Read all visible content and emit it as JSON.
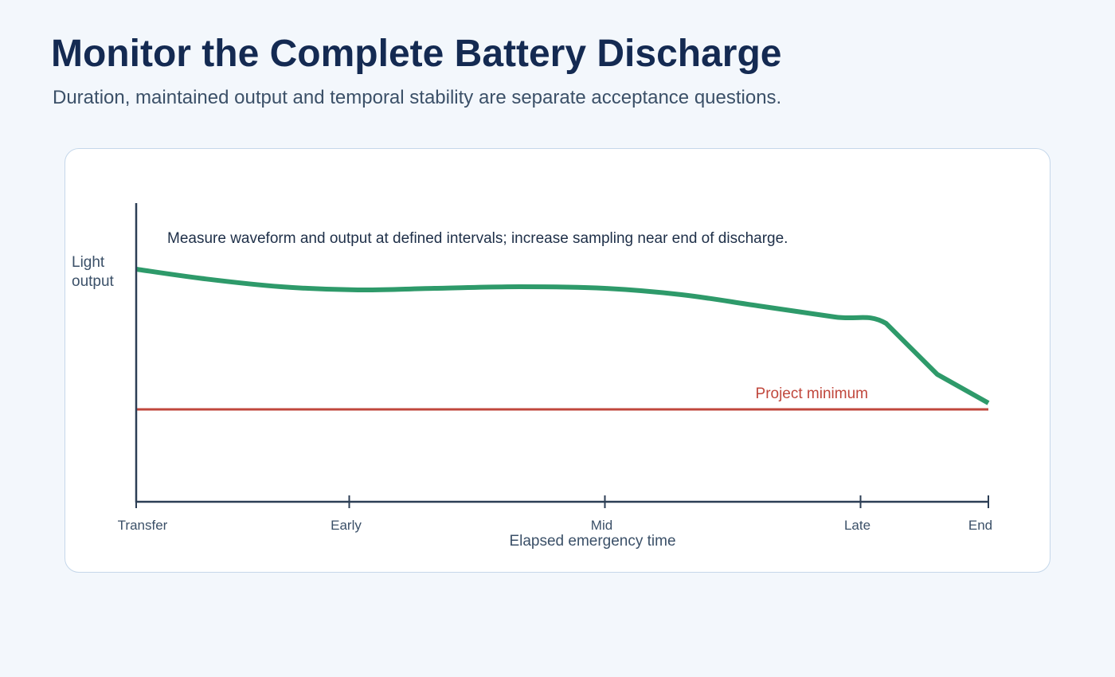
{
  "header": {
    "title": "Monitor the Complete Battery Discharge",
    "subtitle": "Duration, maintained output and temporal stability are separate acceptance questions."
  },
  "chart_data": {
    "type": "line",
    "xlabel": "Elapsed emergency time",
    "ylabel_lines": [
      "Light",
      "output"
    ],
    "categories": [
      "Transfer",
      "Early",
      "Mid",
      "Late",
      "End"
    ],
    "category_positions": [
      0,
      0.25,
      0.55,
      0.85,
      1.0
    ],
    "ylim": [
      0,
      100
    ],
    "series": [
      {
        "color": "#2e9a6a",
        "x": [
          0,
          0.08,
          0.17,
          0.26,
          0.35,
          0.45,
          0.55,
          0.64,
          0.73,
          0.82,
          0.88,
          0.94,
          1.0
        ],
        "values": [
          73,
          70,
          67.5,
          66.5,
          67,
          67.5,
          67,
          65,
          61.5,
          58,
          56,
          40,
          31
        ]
      }
    ],
    "threshold": {
      "label": "Project minimum",
      "value": 29,
      "color": "#c0473c"
    },
    "annotation": "Measure waveform and output at defined intervals; increase sampling near end of discharge.",
    "grid": false
  }
}
